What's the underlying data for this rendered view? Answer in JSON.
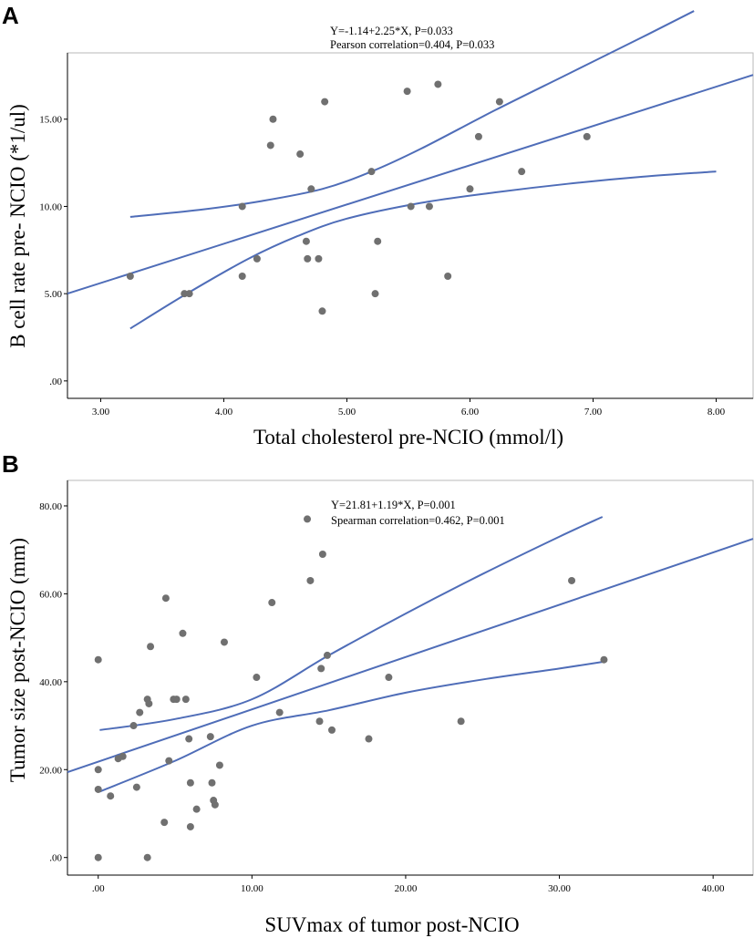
{
  "colors": {
    "line": "#4f6db8",
    "point": "#707070",
    "frame": "#b9b9b9"
  },
  "chart_data": [
    {
      "panel": "A",
      "type": "scatter",
      "xlabel": "Total cholesterol pre-NCIO (mmol/l)",
      "ylabel": "B cell rate pre- NCIO (*1/ul)",
      "xlim": [
        2.73,
        8.3
      ],
      "ylim": [
        -1.0,
        18.8
      ],
      "xticks": [
        3,
        4,
        5,
        6,
        7,
        8
      ],
      "xtick_labels": [
        "3.00",
        "4.00",
        "5.00",
        "6.00",
        "7.00",
        "8.00"
      ],
      "yticks": [
        0,
        5,
        10,
        15
      ],
      "ytick_labels": [
        ".00",
        "5.00",
        "10.00",
        "15.00"
      ],
      "annotations": [
        "Y=-1.14+2.25*X, P=0.033",
        "Pearson correlation=0.404, P=0.033"
      ],
      "fit": {
        "intercept": -1.14,
        "slope": 2.25
      },
      "ci_upper": [
        [
          3.24,
          9.4
        ],
        [
          3.8,
          9.8
        ],
        [
          4.3,
          10.3
        ],
        [
          4.8,
          11.0
        ],
        [
          5.2,
          12.0
        ],
        [
          5.6,
          13.3
        ],
        [
          6.2,
          15.5
        ],
        [
          6.8,
          17.6
        ],
        [
          7.4,
          19.7
        ],
        [
          7.82,
          21.2
        ]
      ],
      "ci_lower": [
        [
          3.24,
          3.0
        ],
        [
          3.7,
          5.0
        ],
        [
          4.2,
          7.0
        ],
        [
          4.6,
          8.3
        ],
        [
          5.0,
          9.3
        ],
        [
          5.6,
          10.2
        ],
        [
          6.2,
          10.8
        ],
        [
          6.8,
          11.3
        ],
        [
          7.4,
          11.7
        ],
        [
          8.0,
          12.0
        ]
      ],
      "points": [
        [
          3.24,
          6.0
        ],
        [
          3.68,
          5.0
        ],
        [
          3.72,
          5.0
        ],
        [
          4.15,
          6.0
        ],
        [
          4.15,
          10.0
        ],
        [
          4.27,
          7.0
        ],
        [
          4.38,
          13.5
        ],
        [
          4.4,
          15.0
        ],
        [
          4.62,
          13.0
        ],
        [
          4.67,
          8.0
        ],
        [
          4.68,
          7.0
        ],
        [
          4.71,
          11.0
        ],
        [
          4.77,
          7.0
        ],
        [
          4.8,
          4.0
        ],
        [
          4.82,
          16.0
        ],
        [
          5.2,
          12.0
        ],
        [
          5.23,
          5.0
        ],
        [
          5.25,
          8.0
        ],
        [
          5.49,
          16.6
        ],
        [
          5.52,
          10.0
        ],
        [
          5.67,
          10.0
        ],
        [
          5.74,
          17.0
        ],
        [
          5.82,
          6.0
        ],
        [
          6.0,
          11.0
        ],
        [
          6.07,
          14.0
        ],
        [
          6.24,
          16.0
        ],
        [
          6.42,
          12.0
        ],
        [
          6.95,
          14.0
        ]
      ]
    },
    {
      "panel": "B",
      "type": "scatter",
      "xlabel": "SUVmax of tumor post-NCIO",
      "ylabel": "Tumor size post-NCIO (mm)",
      "xlim": [
        -2.0,
        42.6
      ],
      "ylim": [
        -4.0,
        85.8
      ],
      "xticks": [
        0,
        10,
        20,
        30,
        40
      ],
      "xtick_labels": [
        ".00",
        "10.00",
        "20.00",
        "30.00",
        "40.00"
      ],
      "yticks": [
        0,
        20,
        40,
        60,
        80
      ],
      "ytick_labels": [
        ".00",
        "20.00",
        "40.00",
        "60.00",
        "80.00"
      ],
      "annotations": [
        "Y=21.81+1.19*X, P=0.001",
        "Spearman correlation=0.462, P=0.001"
      ],
      "fit": {
        "intercept": 21.81,
        "slope": 1.19
      },
      "ci_upper": [
        [
          0.1,
          29.0
        ],
        [
          5.0,
          31.5
        ],
        [
          10.0,
          36.0
        ],
        [
          15.0,
          46.0
        ],
        [
          20.0,
          55.5
        ],
        [
          25.0,
          64.5
        ],
        [
          30.0,
          73.0
        ],
        [
          32.8,
          77.5
        ]
      ],
      "ci_lower": [
        [
          0.1,
          15.0
        ],
        [
          5.0,
          22.0
        ],
        [
          10.0,
          30.0
        ],
        [
          15.0,
          33.5
        ],
        [
          20.0,
          37.5
        ],
        [
          25.0,
          40.5
        ],
        [
          30.0,
          43.0
        ],
        [
          32.8,
          44.5
        ]
      ],
      "points": [
        [
          0.0,
          0.0
        ],
        [
          0.0,
          15.5
        ],
        [
          0.0,
          20.0
        ],
        [
          0.0,
          45.0
        ],
        [
          0.8,
          14.0
        ],
        [
          1.3,
          22.5
        ],
        [
          1.6,
          23.0
        ],
        [
          2.3,
          30.0
        ],
        [
          2.5,
          16.0
        ],
        [
          2.7,
          33.0
        ],
        [
          3.2,
          0.0
        ],
        [
          3.2,
          36.0
        ],
        [
          3.3,
          35.0
        ],
        [
          3.4,
          48.0
        ],
        [
          4.3,
          8.0
        ],
        [
          4.4,
          59.0
        ],
        [
          4.6,
          22.0
        ],
        [
          4.9,
          36.0
        ],
        [
          5.1,
          36.0
        ],
        [
          5.5,
          51.0
        ],
        [
          5.7,
          36.0
        ],
        [
          5.9,
          27.0
        ],
        [
          6.0,
          17.0
        ],
        [
          6.0,
          7.0
        ],
        [
          6.4,
          11.0
        ],
        [
          7.3,
          27.5
        ],
        [
          7.4,
          17.0
        ],
        [
          7.5,
          13.0
        ],
        [
          7.6,
          12.0
        ],
        [
          7.9,
          21.0
        ],
        [
          8.2,
          49.0
        ],
        [
          10.3,
          41.0
        ],
        [
          11.3,
          58.0
        ],
        [
          11.8,
          33.0
        ],
        [
          13.6,
          77.0
        ],
        [
          13.8,
          63.0
        ],
        [
          14.4,
          31.0
        ],
        [
          14.5,
          43.0
        ],
        [
          14.6,
          69.0
        ],
        [
          14.9,
          46.0
        ],
        [
          15.2,
          29.0
        ],
        [
          17.6,
          27.0
        ],
        [
          18.9,
          41.0
        ],
        [
          23.6,
          31.0
        ],
        [
          30.8,
          63.0
        ],
        [
          32.9,
          45.0
        ]
      ]
    }
  ],
  "panels": [
    "A",
    "B"
  ]
}
